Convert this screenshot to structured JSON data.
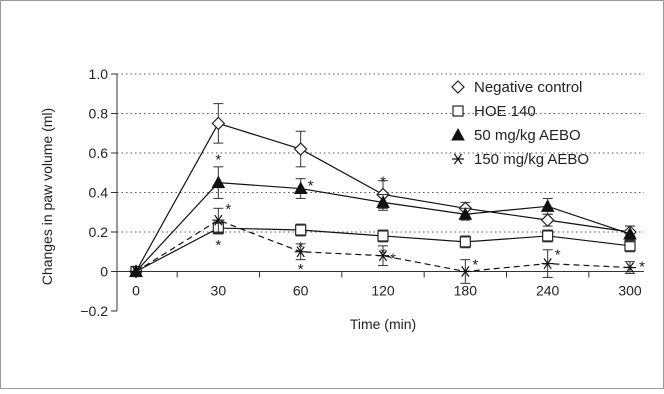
{
  "chart_data": {
    "type": "line",
    "title": "",
    "xlabel": "Time (min)",
    "ylabel": "Changes in paw volume (ml)",
    "x_categories": [
      "0",
      "30",
      "60",
      "120",
      "180",
      "240",
      "300"
    ],
    "ylim": [
      -0.2,
      1.0
    ],
    "yticks": [
      "−0.2",
      "0",
      "0.2",
      "0.4",
      "0.6",
      "0.8",
      "1.0"
    ],
    "ytick_values": [
      -0.2,
      0,
      0.2,
      0.4,
      0.6,
      0.8,
      1.0
    ],
    "grid": "horizontal-dotted",
    "legend_position": "top-right",
    "series": [
      {
        "name": "Negative control",
        "marker": "open-diamond",
        "line": "solid",
        "values": [
          0,
          0.75,
          0.62,
          0.39,
          0.32,
          0.26,
          0.2
        ],
        "errors": [
          0,
          0.1,
          0.09,
          0.07,
          0.03,
          0.03,
          0.03
        ],
        "significant": [
          false,
          false,
          false,
          false,
          false,
          false,
          false
        ]
      },
      {
        "name": "HOE 140",
        "marker": "open-square",
        "line": "solid",
        "values": [
          0,
          0.22,
          0.21,
          0.18,
          0.15,
          0.18,
          0.13
        ],
        "errors": [
          0,
          0.03,
          0.03,
          0.03,
          0.03,
          0.03,
          0.03
        ],
        "significant": [
          false,
          true,
          true,
          true,
          false,
          false,
          false
        ]
      },
      {
        "name": "50 mg/kg AEBO",
        "marker": "filled-triangle",
        "line": "solid",
        "values": [
          0,
          0.45,
          0.42,
          0.35,
          0.29,
          0.33,
          0.19
        ],
        "errors": [
          0,
          0.08,
          0.05,
          0.04,
          0.03,
          0.04,
          0.04
        ],
        "significant": [
          false,
          true,
          true,
          true,
          false,
          false,
          false
        ]
      },
      {
        "name": "150 mg/kg AEBO",
        "marker": "asterisk",
        "line": "dashed",
        "values": [
          0,
          0.26,
          0.1,
          0.08,
          0.0,
          0.04,
          0.02
        ],
        "errors": [
          0,
          0.06,
          0.04,
          0.05,
          0.06,
          0.07,
          0.03
        ],
        "significant": [
          false,
          true,
          true,
          true,
          true,
          true,
          true
        ]
      }
    ],
    "significance_symbol": "*"
  }
}
